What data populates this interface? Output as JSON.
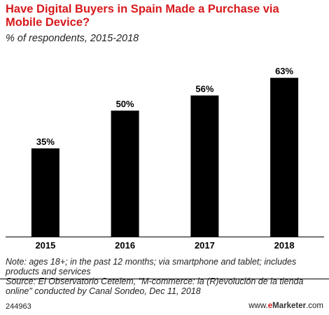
{
  "chart_data": {
    "type": "bar",
    "title": "Have Digital Buyers in Spain Made a Purchase via Mobile Device?",
    "subtitle": "% of respondents, 2015-2018",
    "categories": [
      "2015",
      "2016",
      "2017",
      "2018"
    ],
    "values": [
      35,
      50,
      56,
      63
    ],
    "value_labels": [
      "35%",
      "50%",
      "56%",
      "63%"
    ],
    "ylim": [
      0,
      70
    ],
    "grid": false,
    "xlabel": "",
    "ylabel": "",
    "bar_color": "#000000"
  },
  "notes": {
    "note": "Note: ages 18+; in the past 12 months; via smartphone and tablet; includes products and services",
    "source": "Source: El Observatorio Cetelem, \"M-commerce: la (R)evolución de la tienda online\" conducted by Canal Sondeo, Dec 11, 2018"
  },
  "footer": {
    "chart_id": "244963",
    "site_prefix": "www.",
    "site_e": "e",
    "site_name": "Marketer",
    "site_suffix": ".com"
  },
  "colors": {
    "title": "#d7191c",
    "brand_accent": "#d7191c"
  }
}
